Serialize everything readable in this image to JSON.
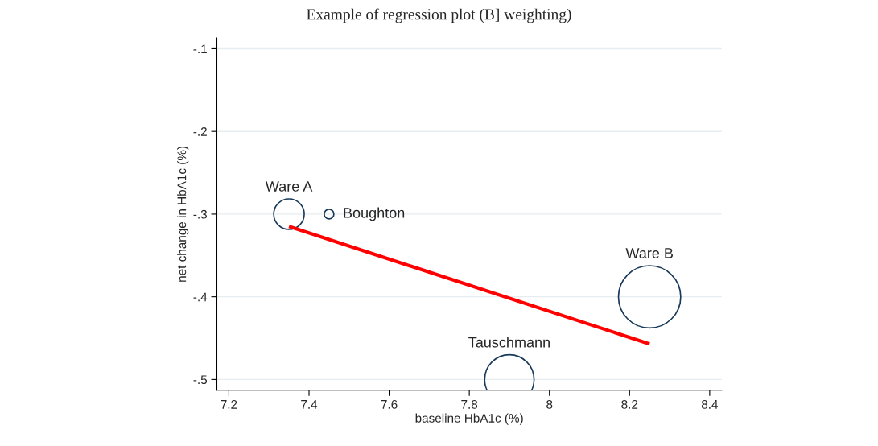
{
  "chart_data": {
    "type": "bubble",
    "title": "Example of regression plot (B] weighting)",
    "xlabel": "baseline HbA1c (%)",
    "ylabel": "net change in HbA1c (%)",
    "series": [
      {
        "marker": "circle",
        "color": "#1a3a5c",
        "x": [
          7.35,
          7.45,
          8.25,
          7.9
        ],
        "values": [
          -0.3,
          -0.3,
          -0.4,
          -0.5
        ],
        "sizes": [
          0.24,
          0.024,
          1,
          0.63
        ]
      },
      {
        "type": "line",
        "color": "#ff0000",
        "x": [
          7.35,
          8.25
        ],
        "values": [
          -0.315,
          -0.457
        ]
      }
    ],
    "annotations": [
      {
        "text": "Ware A",
        "x": 7.35,
        "y": -0.3
      },
      {
        "text": "Boughton",
        "x": 7.45,
        "y": -0.3
      },
      {
        "text": "Ware B",
        "x": 8.25,
        "y": -0.4
      },
      {
        "text": "Tauschmann",
        "x": 7.9,
        "y": -0.5
      }
    ],
    "xlim": [
      7.17,
      8.43
    ],
    "ylim": [
      -0.513,
      -0.087
    ],
    "xticks": [
      7.2,
      7.4,
      7.6,
      7.8,
      {
        "value": 8,
        "label": "8"
      },
      8.2,
      8.4
    ],
    "yticks": [
      {
        "value": -0.1,
        "label": "-.1"
      },
      {
        "value": -0.2,
        "label": "-.2"
      },
      {
        "value": -0.3,
        "label": "-.3"
      },
      {
        "value": -0.4,
        "label": "-.4"
      },
      {
        "value": -0.5,
        "label": "-.5"
      }
    ],
    "grid": "y",
    "legend": false
  }
}
